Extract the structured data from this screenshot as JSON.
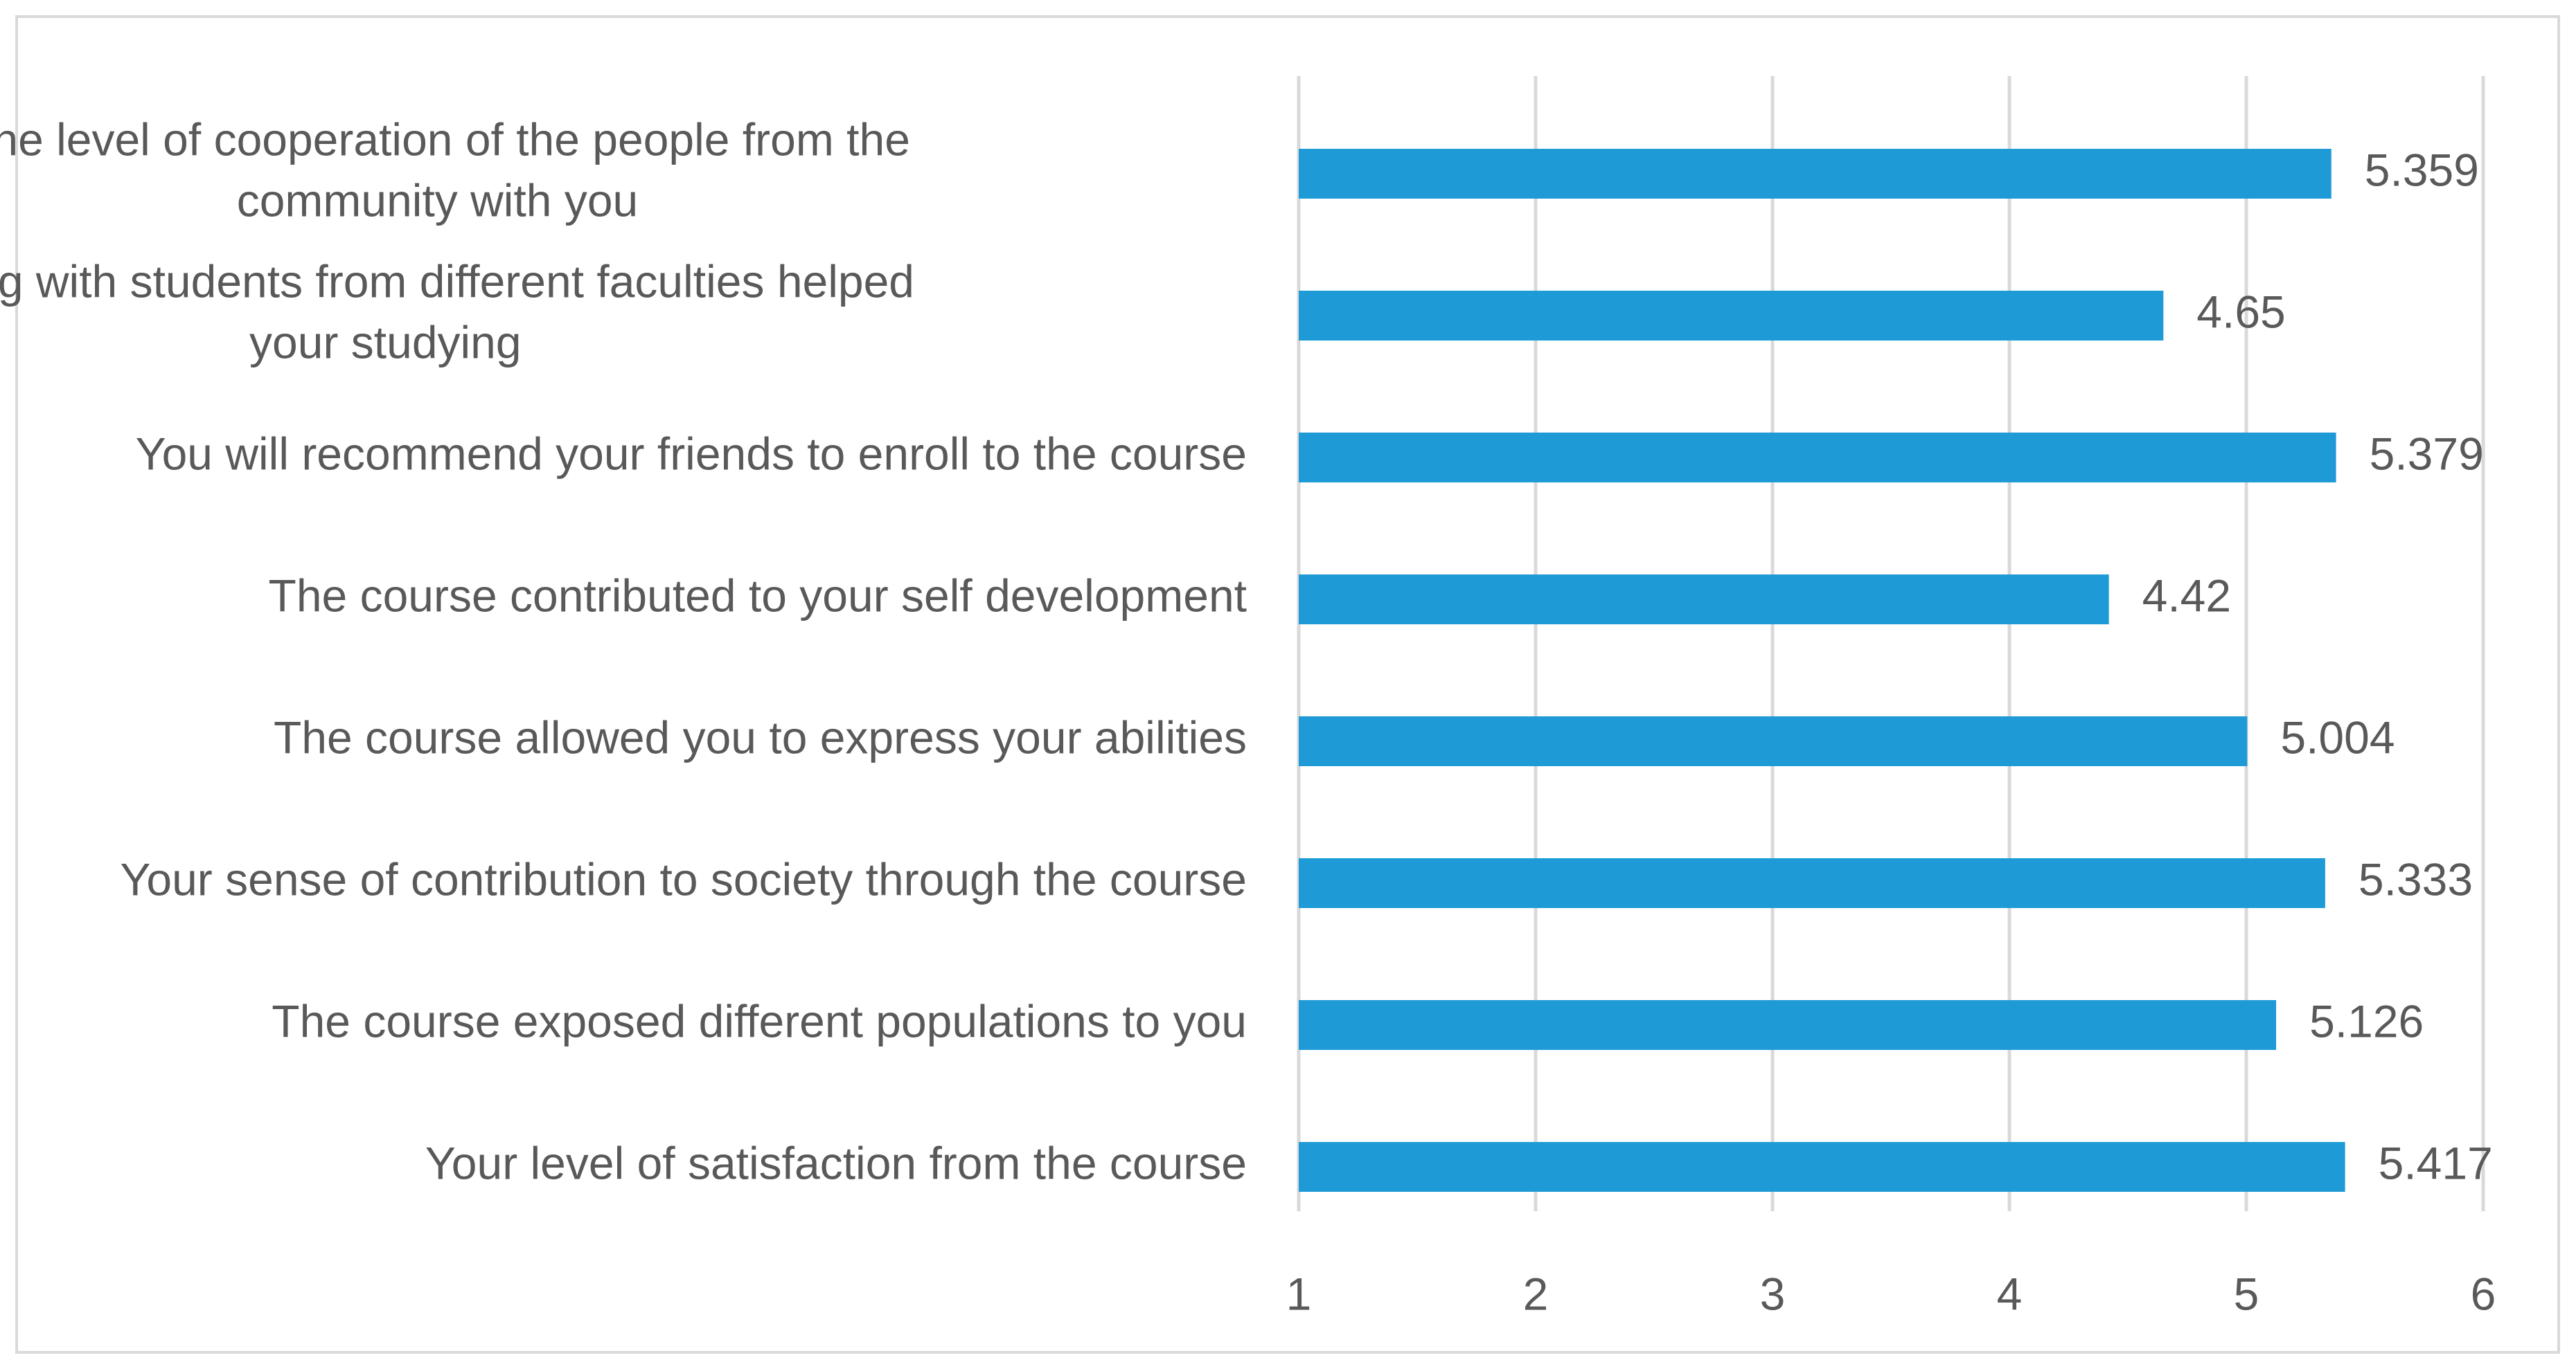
{
  "chart_data": {
    "type": "bar",
    "orientation": "horizontal",
    "title": "",
    "xlabel": "",
    "ylabel": "",
    "categories": [
      "The level of cooperation of the people from the community with you",
      "Working with students from different faculties helped your studying",
      "You will recommend your friends to enroll to the course",
      "The course contributed to your self development",
      "The course allowed you to express your abilities",
      "Your sense of contribution to society through the course",
      "The course exposed different populations to you",
      "Your level of satisfaction from the course"
    ],
    "category_lines": [
      [
        "The level of cooperation of the people from the",
        "community with you"
      ],
      [
        "Working with students from different faculties helped",
        "your studying"
      ],
      [
        "You will recommend your friends to enroll to the course"
      ],
      [
        "The course contributed to your self development"
      ],
      [
        "The course allowed you to express your abilities"
      ],
      [
        "Your sense of contribution to society through the course"
      ],
      [
        "The course exposed different populations to you"
      ],
      [
        "Your level of satisfaction from the course"
      ]
    ],
    "values": [
      5.359,
      4.65,
      5.379,
      4.42,
      5.004,
      5.333,
      5.126,
      5.417
    ],
    "value_labels": [
      "5.359",
      "4.65",
      "5.379",
      "4.42",
      "5.004",
      "5.333",
      "5.126",
      "5.417"
    ],
    "xlim": [
      1,
      6
    ],
    "ticks": [
      1,
      2,
      3,
      4,
      5,
      6
    ],
    "tick_labels": [
      "1",
      "2",
      "3",
      "4",
      "5",
      "6"
    ],
    "grid": true,
    "legend": "none",
    "bar_color": "#1e9bd7",
    "grid_color": "#d9d9d9",
    "text_color": "#595959"
  }
}
